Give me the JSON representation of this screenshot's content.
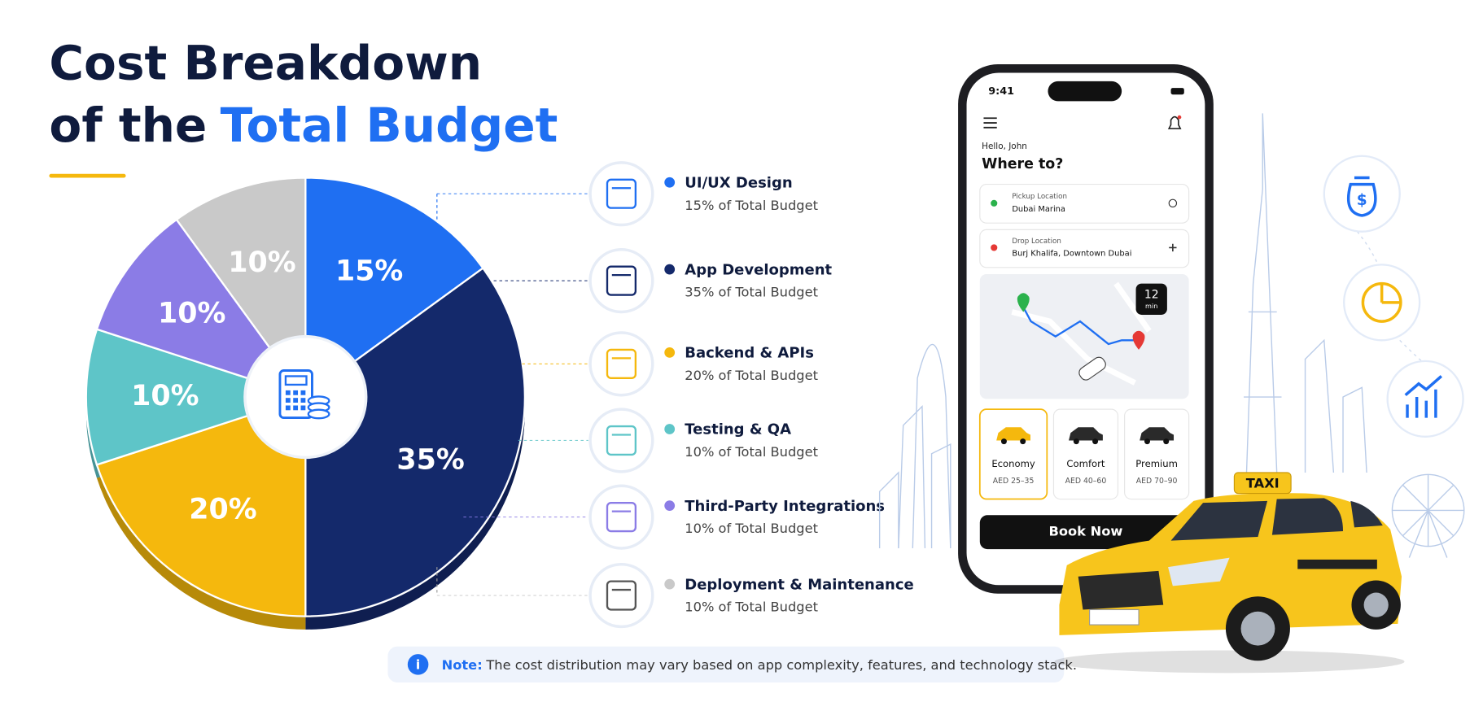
{
  "chart_data": {
    "type": "pie",
    "title": {
      "line1": "Cost Breakdown",
      "line2_prefix": "of the",
      "line2_highlight": "Total Budget"
    },
    "categories": [
      "UI/UX Design",
      "App Development",
      "Backend & APIs",
      "Testing & QA",
      "Third-Party Integrations",
      "Deployment & Maintenance"
    ],
    "values": [
      15,
      35,
      20,
      10,
      10,
      10
    ],
    "value_labels": [
      "15%",
      "35%",
      "20%",
      "10%",
      "10%",
      "10%"
    ],
    "descriptions": [
      "15% of Total Budget",
      "35% of Total Budget",
      "20% of Total Budget",
      "10% of Total Budget",
      "10% of Total Budget",
      "10% of Total Budget"
    ],
    "colors": [
      "#1f6ff2",
      "#14296b",
      "#f5b80d",
      "#5ec5c8",
      "#8b7ce6",
      "#c9c9c9"
    ]
  },
  "note": {
    "label": "Note:",
    "text": "The cost distribution may vary based on app complexity, features, and technology stack."
  },
  "phone": {
    "time": "9:41",
    "greeting": "Hello, John",
    "question": "Where to?",
    "pickup_label": "Pickup Location",
    "pickup_value": "Dubai Marina",
    "drop_label": "Drop Location",
    "drop_value": "Burj Khalifa, Downtown Dubai",
    "eta_value": "12",
    "eta_unit": "min",
    "rides": [
      {
        "name": "Economy",
        "price": "AED 25–35"
      },
      {
        "name": "Comfort",
        "price": "AED 40–60"
      },
      {
        "name": "Premium",
        "price": "AED 70–90"
      }
    ],
    "button": "Book Now"
  },
  "taxi_sign": "TAXI"
}
